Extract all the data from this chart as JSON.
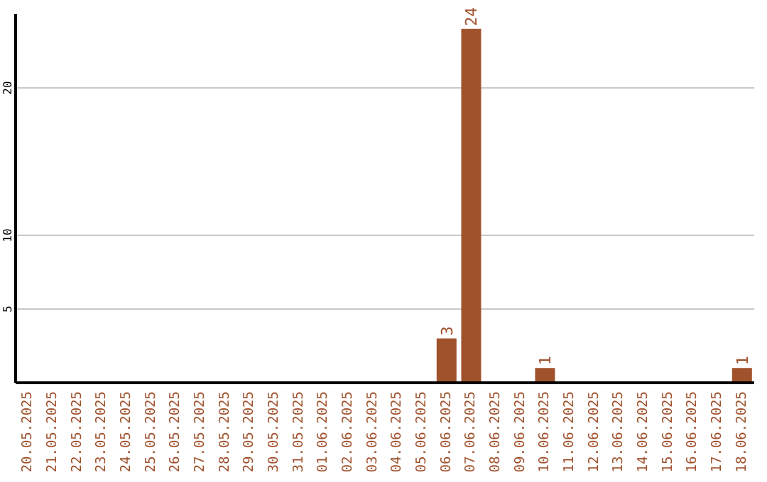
{
  "chart_data": {
    "type": "bar",
    "categories": [
      "20.05.2025",
      "21.05.2025",
      "22.05.2025",
      "23.05.2025",
      "24.05.2025",
      "25.05.2025",
      "26.05.2025",
      "27.05.2025",
      "28.05.2025",
      "29.05.2025",
      "30.05.2025",
      "31.05.2025",
      "01.06.2025",
      "02.06.2025",
      "03.06.2025",
      "04.06.2025",
      "05.06.2025",
      "06.06.2025",
      "07.06.2025",
      "08.06.2025",
      "09.06.2025",
      "10.06.2025",
      "11.06.2025",
      "12.06.2025",
      "13.06.2025",
      "14.06.2025",
      "15.06.2025",
      "16.06.2025",
      "17.06.2025",
      "18.06.2025"
    ],
    "values": [
      0,
      0,
      0,
      0,
      0,
      0,
      0,
      0,
      0,
      0,
      0,
      0,
      0,
      0,
      0,
      0,
      0,
      3,
      24,
      0,
      0,
      1,
      0,
      0,
      0,
      0,
      0,
      0,
      0,
      1
    ],
    "value_labels": [
      null,
      null,
      null,
      null,
      null,
      null,
      null,
      null,
      null,
      null,
      null,
      null,
      null,
      null,
      null,
      null,
      null,
      "3",
      "24",
      null,
      null,
      "1",
      null,
      null,
      null,
      null,
      null,
      null,
      null,
      "1"
    ],
    "color": "#a0522d",
    "ylim": [
      0,
      25
    ],
    "yticks": [
      5,
      10,
      20
    ],
    "grid": "y",
    "legend": false
  }
}
